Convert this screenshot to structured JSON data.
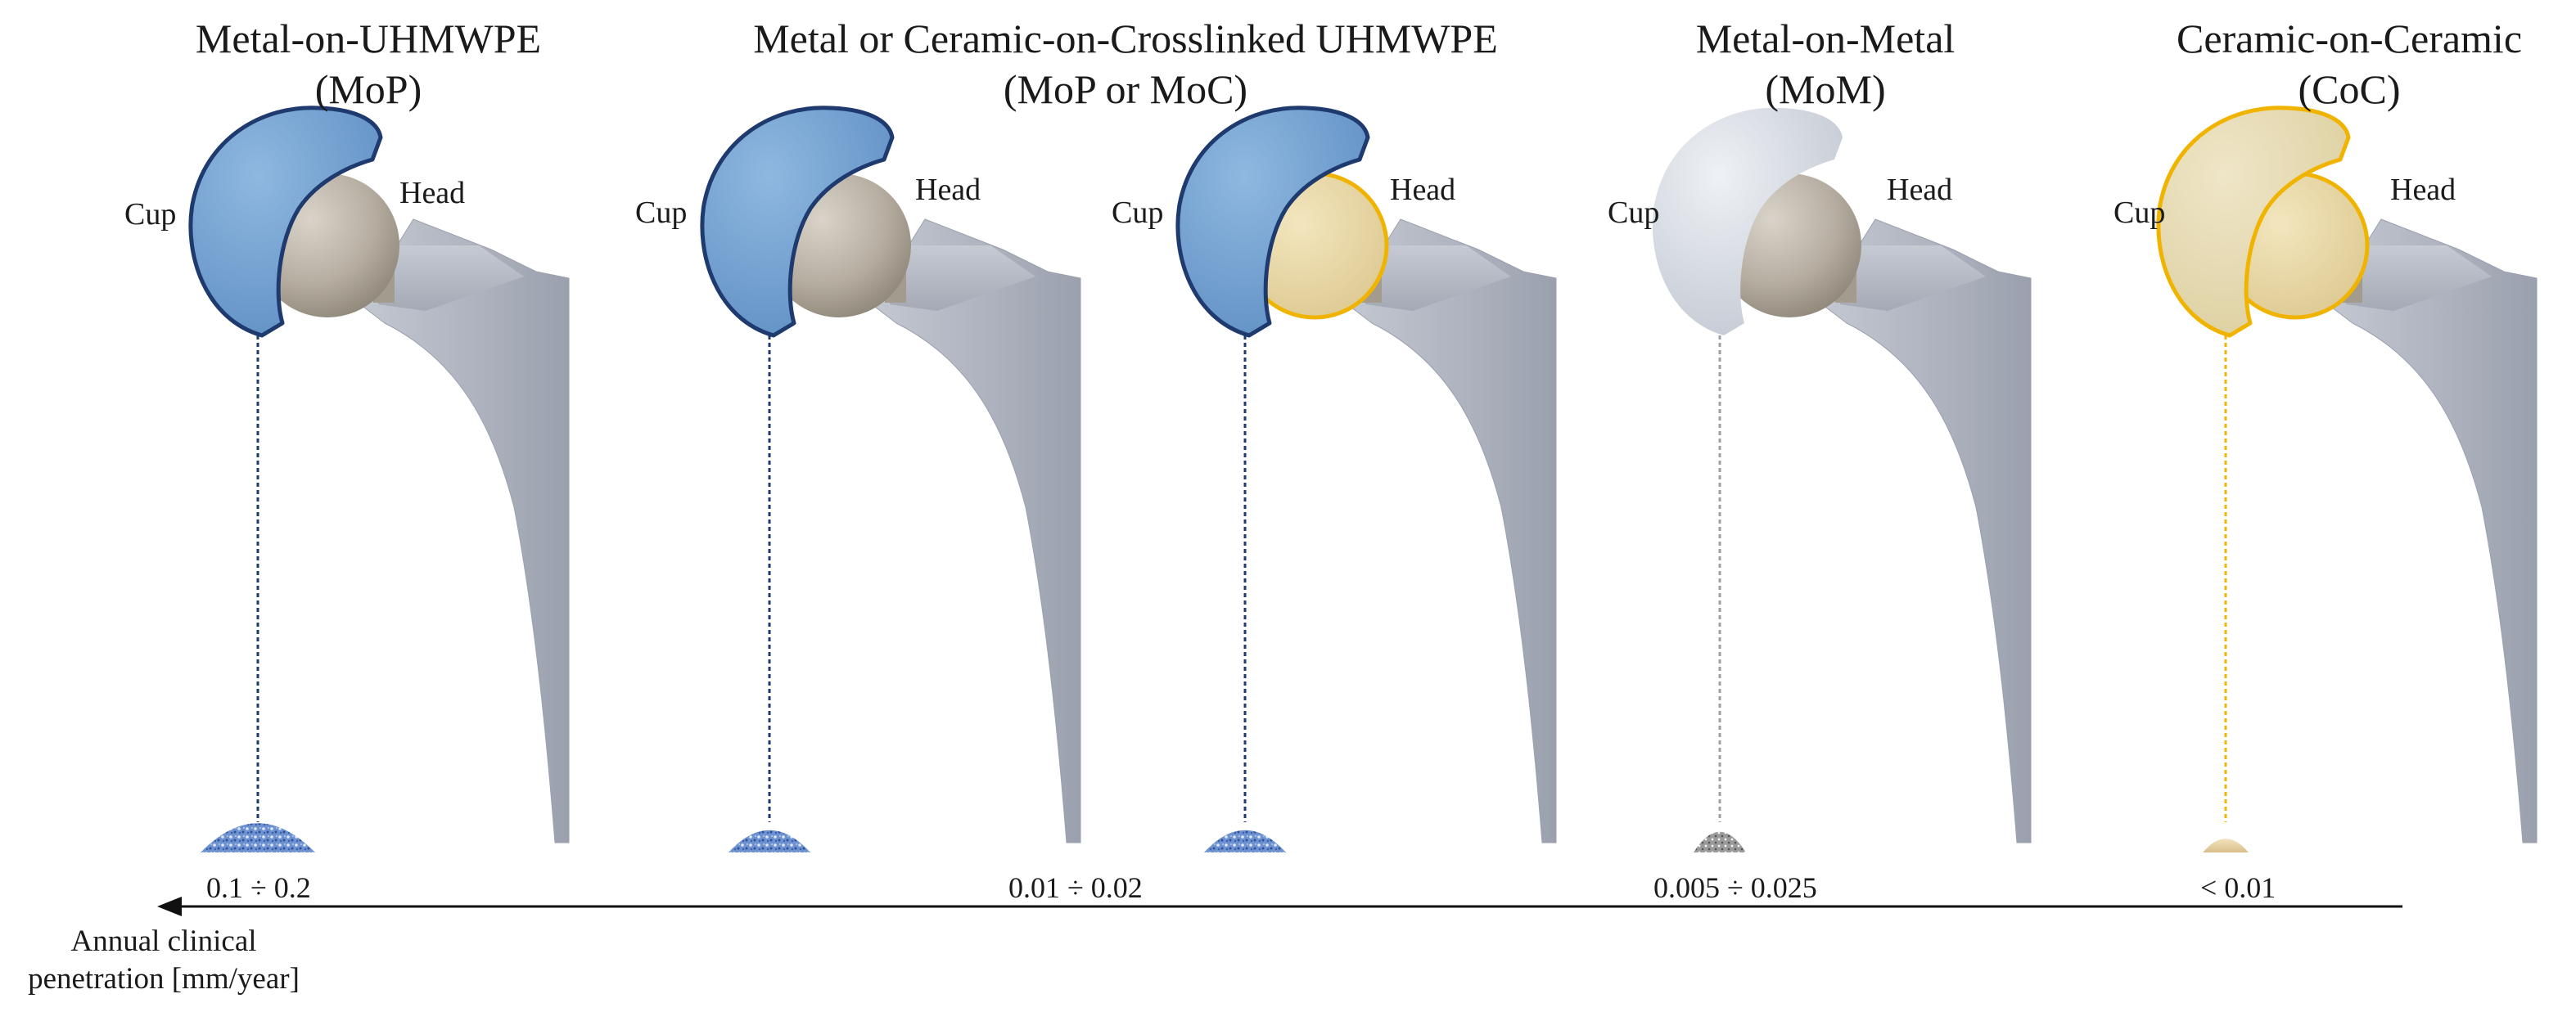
{
  "groups": [
    {
      "title": "Metal-on-UHMWPE",
      "subtitle": "(MoP)"
    },
    {
      "title": "Metal or Ceramic-on-Crosslinked UHMWPE",
      "subtitle": "(MoP or MoC)"
    },
    {
      "title": "Metal-on-Metal",
      "subtitle": "(MoM)"
    },
    {
      "title": "Ceramic-on-Ceramic",
      "subtitle": "(CoC)"
    }
  ],
  "implants": [
    {
      "cup_label": "Cup",
      "head_label": "Head",
      "cup_material": "UHMWPE",
      "head_material": "Metal",
      "cup_color": "#6f9fd0",
      "cup_outline": "#1e3a6e",
      "head_color": "#b8b1a6",
      "debris": "large-blue-pile"
    },
    {
      "cup_label": "Cup",
      "head_label": "Head",
      "cup_material": "Crosslinked UHMWPE",
      "head_material": "Metal",
      "cup_color": "#6f9fd0",
      "cup_outline": "#1e3a6e",
      "head_color": "#b8b1a6",
      "debris": "small-blue-pile"
    },
    {
      "cup_label": "Cup",
      "head_label": "Head",
      "cup_material": "Crosslinked UHMWPE",
      "head_material": "Ceramic",
      "cup_color": "#6f9fd0",
      "cup_outline": "#1e3a6e",
      "head_color": "#ead9a4",
      "head_outline": "#f0b400",
      "debris": "small-blue-pile"
    },
    {
      "cup_label": "Cup",
      "head_label": "Head",
      "cup_material": "Metal",
      "head_material": "Metal",
      "cup_color": "#d4dae2",
      "head_color": "#b8b1a6",
      "debris": "tiny-grey-pile"
    },
    {
      "cup_label": "Cup",
      "head_label": "Head",
      "cup_material": "Ceramic",
      "head_material": "Ceramic",
      "cup_color": "#e6dcb8",
      "cup_outline": "#f0b400",
      "head_color": "#e6dcb8",
      "head_outline": "#f0b400",
      "debris": "tiny-beige-pile"
    }
  ],
  "axis": {
    "values": [
      "0.1 ÷ 0.2",
      "0.01 ÷ 0.02",
      "0.005 ÷ 0.025",
      "< 0.01"
    ],
    "caption": "Annual clinical penetration [mm/year]"
  }
}
